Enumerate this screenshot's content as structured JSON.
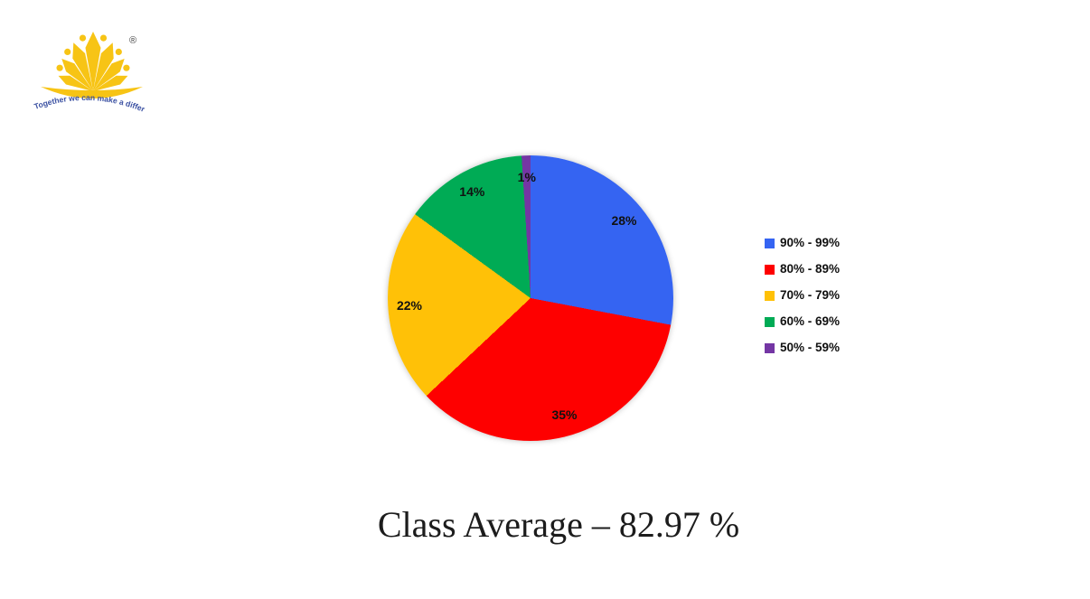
{
  "logo": {
    "registered_mark": "®",
    "tagline": "Together we can make a difference",
    "brand_color": "#F7C415",
    "tagline_color": "#3A50A2"
  },
  "chart_data": {
    "type": "pie",
    "title": "Class Average – 82.97 %",
    "start_angle_deg": 0,
    "direction": "clockwise",
    "legend_position": "right",
    "data_labels": "percent-inside",
    "label_radius_factor": 0.85,
    "slices": [
      {
        "label": "90% - 99%",
        "value": 28,
        "display": "28%",
        "color": "#3564F2"
      },
      {
        "label": "80% - 89%",
        "value": 35,
        "display": "35%",
        "color": "#FE0000"
      },
      {
        "label": "70% - 79%",
        "value": 22,
        "display": "22%",
        "color": "#FFC107"
      },
      {
        "label": "60% - 69%",
        "value": 14,
        "display": "14%",
        "color": "#00AB55"
      },
      {
        "label": "50% - 59%",
        "value": 1,
        "display": "1%",
        "color": "#7436A4"
      }
    ]
  },
  "caption": {
    "text": "Class Average – 82.97 %"
  }
}
